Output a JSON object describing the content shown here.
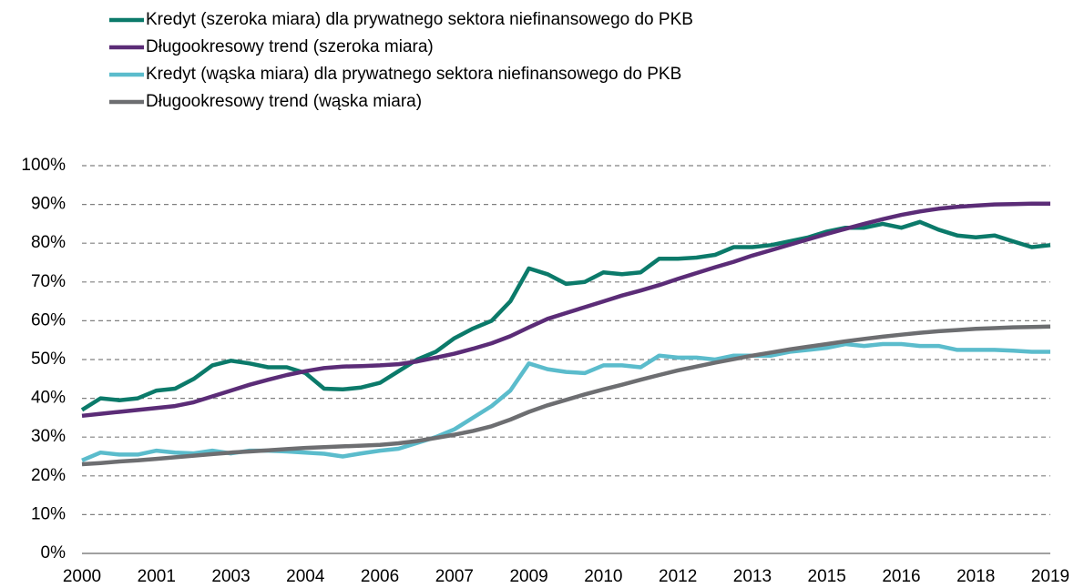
{
  "chart_data": {
    "type": "line",
    "categories": [
      "2000",
      null,
      null,
      null,
      "2001",
      null,
      null,
      null,
      "2003",
      null,
      null,
      null,
      "2004",
      null,
      null,
      null,
      "2006",
      null,
      null,
      null,
      "2007",
      null,
      null,
      null,
      "2009",
      null,
      null,
      null,
      "2010",
      null,
      null,
      null,
      "2012",
      null,
      null,
      null,
      "2013",
      null,
      null,
      null,
      "2015",
      null,
      null,
      null,
      "2016",
      null,
      null,
      null,
      "2018",
      null,
      null,
      null,
      "2019"
    ],
    "series": [
      {
        "name": "Kredyt (szeroka miara) dla prywatnego sektora niefinansowego do PKB",
        "color": "#0b7a6a",
        "values": [
          37,
          40,
          39.5,
          40,
          42,
          42.5,
          45,
          48.5,
          49.7,
          49,
          48,
          48,
          46.5,
          42.5,
          42.3,
          42.8,
          44,
          47,
          50,
          52,
          55.5,
          58,
          60,
          65,
          73.5,
          72,
          69.5,
          70,
          72.5,
          72,
          72.5,
          76,
          76,
          76.3,
          77,
          79,
          79,
          79.5,
          80.5,
          81.5,
          83,
          84,
          84,
          85,
          84,
          85.5,
          83.5,
          82,
          81.5,
          82,
          80.5,
          79,
          79.5
        ]
      },
      {
        "name": "Długookresowy trend (szeroka miara)",
        "color": "#5b2c77",
        "values": [
          35.5,
          36,
          36.5,
          37,
          37.5,
          38,
          39,
          40.5,
          42,
          43.5,
          44.8,
          46,
          47,
          47.8,
          48.2,
          48.3,
          48.5,
          48.8,
          49.5,
          50.5,
          51.5,
          52.8,
          54.2,
          56,
          58.3,
          60.5,
          62,
          63.5,
          65,
          66.5,
          67.8,
          69.2,
          70.8,
          72.3,
          73.8,
          75.2,
          76.8,
          78.2,
          79.6,
          81,
          82.4,
          83.7,
          85,
          86.2,
          87.3,
          88.2,
          88.9,
          89.4,
          89.7,
          90,
          90.1,
          90.2,
          90.2
        ]
      },
      {
        "name": "Kredyt (wąska miara) dla prywatnego sektora niefinansowego do PKB",
        "color": "#5bbccc",
        "values": [
          24,
          26,
          25.5,
          25.5,
          26.5,
          26,
          25.8,
          26.5,
          25.8,
          26.5,
          26.5,
          26.3,
          26,
          25.7,
          25,
          25.8,
          26.5,
          27,
          28.5,
          30,
          32,
          35,
          38,
          42,
          49,
          47.5,
          46.8,
          46.5,
          48.5,
          48.5,
          48,
          51,
          50.5,
          50.5,
          50,
          51,
          51,
          51,
          52,
          52.5,
          53,
          54,
          53.5,
          54,
          54,
          53.5,
          53.5,
          52.5,
          52.5,
          52.5,
          52.3,
          52,
          52
        ]
      },
      {
        "name": "Długookresowy trend (wąska miara)",
        "color": "#6d6e71",
        "values": [
          23,
          23.3,
          23.7,
          24,
          24.4,
          24.8,
          25.2,
          25.6,
          26,
          26.3,
          26.6,
          26.9,
          27.2,
          27.4,
          27.6,
          27.8,
          28,
          28.4,
          29,
          29.8,
          30.6,
          31.6,
          32.8,
          34.5,
          36.5,
          38.2,
          39.6,
          41,
          42.3,
          43.5,
          44.8,
          46,
          47.2,
          48.2,
          49.2,
          50.1,
          51,
          51.8,
          52.6,
          53.3,
          54,
          54.7,
          55.3,
          55.9,
          56.4,
          56.9,
          57.3,
          57.6,
          57.9,
          58.1,
          58.3,
          58.4,
          58.5
        ]
      }
    ],
    "ylim": [
      0,
      100
    ],
    "yticks": [
      {
        "value": 0,
        "label": "0%"
      },
      {
        "value": 10,
        "label": "10%"
      },
      {
        "value": 20,
        "label": "20%"
      },
      {
        "value": 30,
        "label": "30%"
      },
      {
        "value": 40,
        "label": "40%"
      },
      {
        "value": 50,
        "label": "50%"
      },
      {
        "value": 60,
        "label": "60%"
      },
      {
        "value": 70,
        "label": "70%"
      },
      {
        "value": 80,
        "label": "80%"
      },
      {
        "value": 90,
        "label": "90%"
      },
      {
        "value": 100,
        "label": "100%"
      }
    ],
    "grid": true,
    "legend": "top"
  }
}
